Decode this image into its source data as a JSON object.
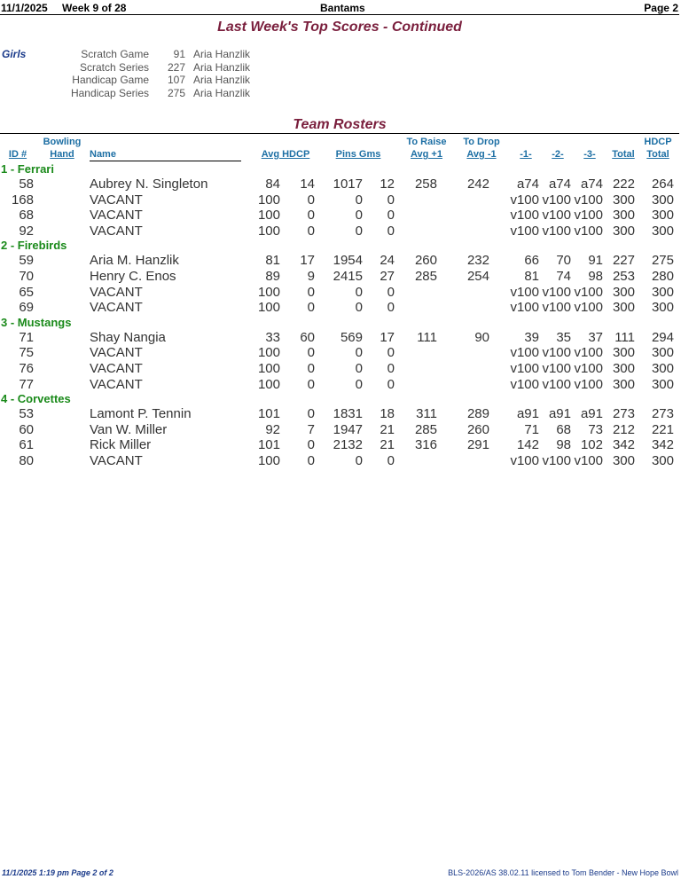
{
  "header": {
    "date": "11/1/2025",
    "week": "Week 9 of 28",
    "league": "Bantams",
    "page": "Page 2"
  },
  "top_scores": {
    "title": "Last Week's Top Scores - Continued",
    "group": "Girls",
    "rows": [
      {
        "label": "Scratch Game",
        "value": "91",
        "name": "Aria Hanzlik"
      },
      {
        "label": "Scratch Series",
        "value": "227",
        "name": "Aria Hanzlik"
      },
      {
        "label": "Handicap Game",
        "value": "107",
        "name": "Aria Hanzlik"
      },
      {
        "label": "Handicap Series",
        "value": "275",
        "name": "Aria Hanzlik"
      }
    ]
  },
  "rosters": {
    "title": "Team Rosters",
    "columns": {
      "id": "ID #",
      "bowling_top": "Bowling",
      "bowling_bottom": "Hand",
      "name": "Name",
      "avg_hdcp": "Avg HDCP",
      "pins_gms": "Pins  Gms",
      "raise_top": "To Raise",
      "raise_bottom": "Avg +1",
      "drop_top": "To Drop",
      "drop_bottom": "Avg -1",
      "g1": "-1-",
      "g2": "-2-",
      "g3": "-3-",
      "total": "Total",
      "hdcp_top": "HDCP",
      "hdcp_bottom": "Total"
    },
    "teams": [
      {
        "name": "1 - Ferrari",
        "rows": [
          {
            "id": "58",
            "name": "Aubrey N. Singleton",
            "avg": "84",
            "hdcp": "14",
            "pins": "1017",
            "gms": "12",
            "raise": "258",
            "drop": "242",
            "g1": "a74",
            "g2": "a74",
            "g3": "a74",
            "total": "222",
            "hdcp_total": "264"
          },
          {
            "id": "168",
            "name": "VACANT",
            "avg": "100",
            "hdcp": "0",
            "pins": "0",
            "gms": "0",
            "raise": "",
            "drop": "",
            "g1": "v100",
            "g2": "v100",
            "g3": "v100",
            "total": "300",
            "hdcp_total": "300"
          },
          {
            "id": "68",
            "name": "VACANT",
            "avg": "100",
            "hdcp": "0",
            "pins": "0",
            "gms": "0",
            "raise": "",
            "drop": "",
            "g1": "v100",
            "g2": "v100",
            "g3": "v100",
            "total": "300",
            "hdcp_total": "300"
          },
          {
            "id": "92",
            "name": "VACANT",
            "avg": "100",
            "hdcp": "0",
            "pins": "0",
            "gms": "0",
            "raise": "",
            "drop": "",
            "g1": "v100",
            "g2": "v100",
            "g3": "v100",
            "total": "300",
            "hdcp_total": "300"
          }
        ]
      },
      {
        "name": "2 - Firebirds",
        "rows": [
          {
            "id": "59",
            "name": "Aria M. Hanzlik",
            "avg": "81",
            "hdcp": "17",
            "pins": "1954",
            "gms": "24",
            "raise": "260",
            "drop": "232",
            "g1": "66",
            "g2": "70",
            "g3": "91",
            "total": "227",
            "hdcp_total": "275"
          },
          {
            "id": "70",
            "name": "Henry C. Enos",
            "avg": "89",
            "hdcp": "9",
            "pins": "2415",
            "gms": "27",
            "raise": "285",
            "drop": "254",
            "g1": "81",
            "g2": "74",
            "g3": "98",
            "total": "253",
            "hdcp_total": "280"
          },
          {
            "id": "65",
            "name": "VACANT",
            "avg": "100",
            "hdcp": "0",
            "pins": "0",
            "gms": "0",
            "raise": "",
            "drop": "",
            "g1": "v100",
            "g2": "v100",
            "g3": "v100",
            "total": "300",
            "hdcp_total": "300"
          },
          {
            "id": "69",
            "name": "VACANT",
            "avg": "100",
            "hdcp": "0",
            "pins": "0",
            "gms": "0",
            "raise": "",
            "drop": "",
            "g1": "v100",
            "g2": "v100",
            "g3": "v100",
            "total": "300",
            "hdcp_total": "300"
          }
        ]
      },
      {
        "name": "3 - Mustangs",
        "rows": [
          {
            "id": "71",
            "name": "Shay Nangia",
            "avg": "33",
            "hdcp": "60",
            "pins": "569",
            "gms": "17",
            "raise": "111",
            "drop": "90",
            "g1": "39",
            "g2": "35",
            "g3": "37",
            "total": "111",
            "hdcp_total": "294"
          },
          {
            "id": "75",
            "name": "VACANT",
            "avg": "100",
            "hdcp": "0",
            "pins": "0",
            "gms": "0",
            "raise": "",
            "drop": "",
            "g1": "v100",
            "g2": "v100",
            "g3": "v100",
            "total": "300",
            "hdcp_total": "300"
          },
          {
            "id": "76",
            "name": "VACANT",
            "avg": "100",
            "hdcp": "0",
            "pins": "0",
            "gms": "0",
            "raise": "",
            "drop": "",
            "g1": "v100",
            "g2": "v100",
            "g3": "v100",
            "total": "300",
            "hdcp_total": "300"
          },
          {
            "id": "77",
            "name": "VACANT",
            "avg": "100",
            "hdcp": "0",
            "pins": "0",
            "gms": "0",
            "raise": "",
            "drop": "",
            "g1": "v100",
            "g2": "v100",
            "g3": "v100",
            "total": "300",
            "hdcp_total": "300"
          }
        ]
      },
      {
        "name": "4 - Corvettes",
        "rows": [
          {
            "id": "53",
            "name": "Lamont P. Tennin",
            "avg": "101",
            "hdcp": "0",
            "pins": "1831",
            "gms": "18",
            "raise": "311",
            "drop": "289",
            "g1": "a91",
            "g2": "a91",
            "g3": "a91",
            "total": "273",
            "hdcp_total": "273"
          },
          {
            "id": "60",
            "name": "Van W. Miller",
            "avg": "92",
            "hdcp": "7",
            "pins": "1947",
            "gms": "21",
            "raise": "285",
            "drop": "260",
            "g1": "71",
            "g2": "68",
            "g3": "73",
            "total": "212",
            "hdcp_total": "221"
          },
          {
            "id": "61",
            "name": "Rick Miller",
            "avg": "101",
            "hdcp": "0",
            "pins": "2132",
            "gms": "21",
            "raise": "316",
            "drop": "291",
            "g1": "142",
            "g2": "98",
            "g3": "102",
            "total": "342",
            "hdcp_total": "342"
          },
          {
            "id": "80",
            "name": "VACANT",
            "avg": "100",
            "hdcp": "0",
            "pins": "0",
            "gms": "0",
            "raise": "",
            "drop": "",
            "g1": "v100",
            "g2": "v100",
            "g3": "v100",
            "total": "300",
            "hdcp_total": "300"
          }
        ]
      }
    ]
  },
  "footer": {
    "left": "11/1/2025  1:19 pm  Page 2 of 2",
    "right": "BLS-2026/AS 38.02.11 licensed to Tom Bender - New Hope Bowl"
  }
}
